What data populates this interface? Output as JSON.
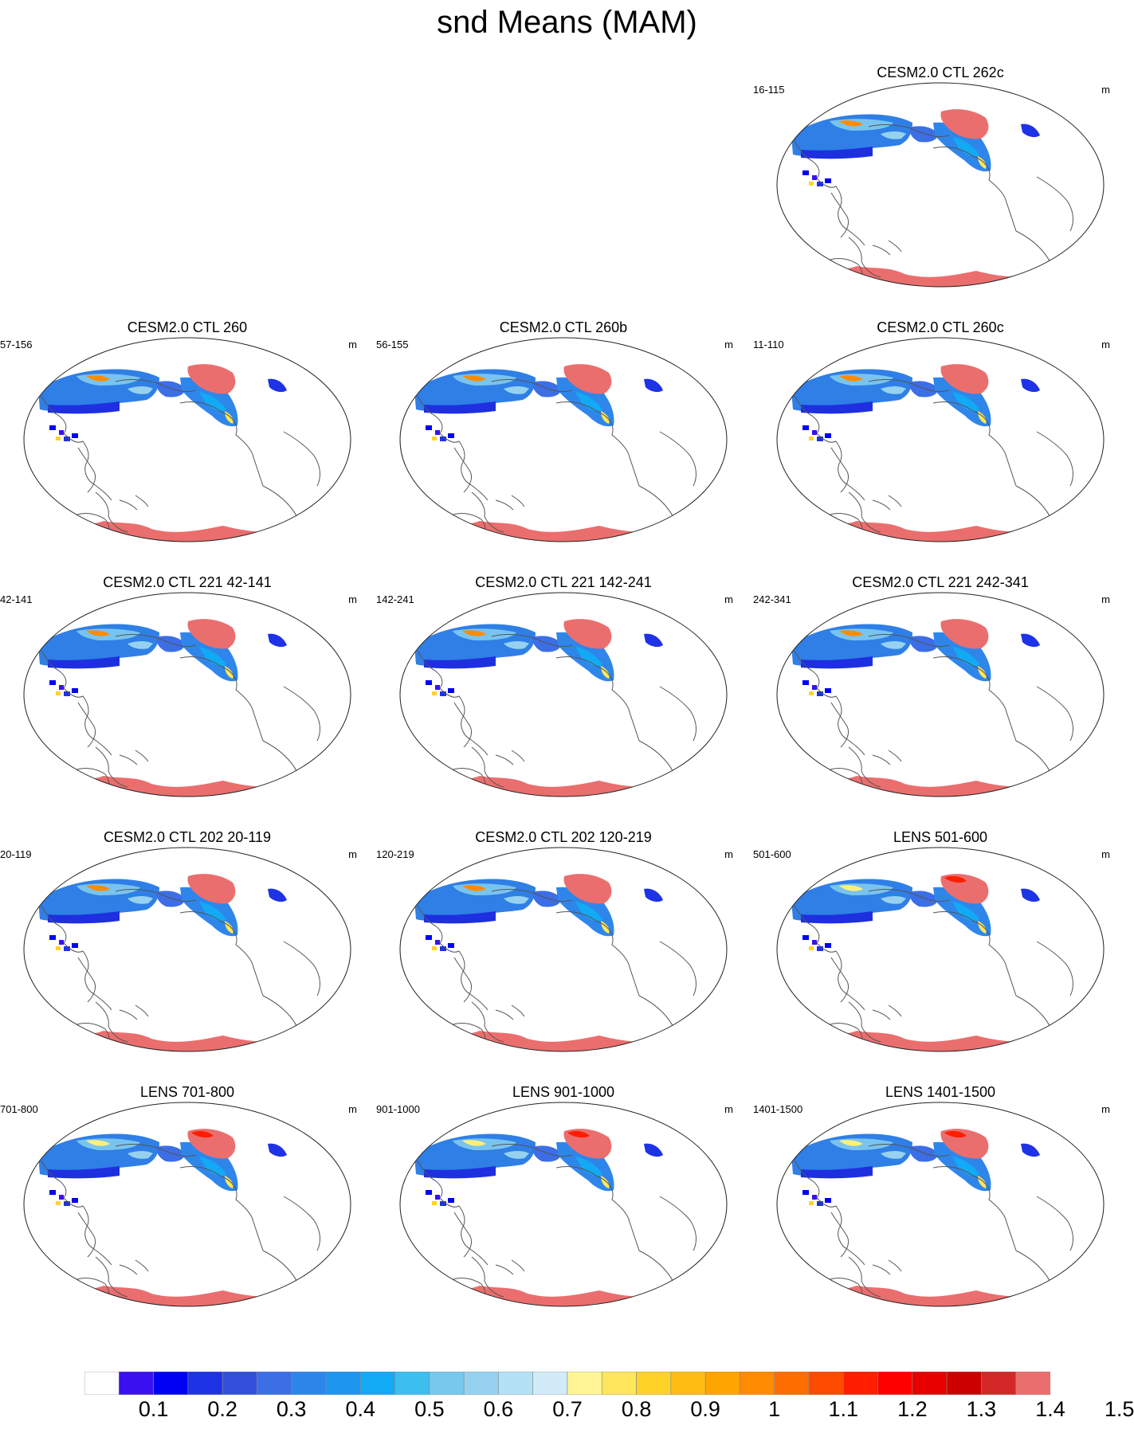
{
  "title": "snd Means (MAM)",
  "panels": [
    {
      "title": "CESM2.0 CTL 262c",
      "years": "16-115",
      "units": "m",
      "variant": "ctl"
    },
    {
      "title": "CESM2.0 CTL 260",
      "years": "57-156",
      "units": "m",
      "variant": "ctl"
    },
    {
      "title": "CESM2.0 CTL 260b",
      "years": "56-155",
      "units": "m",
      "variant": "ctl"
    },
    {
      "title": "CESM2.0 CTL 260c",
      "years": "11-110",
      "units": "m",
      "variant": "ctl"
    },
    {
      "title": "CESM2.0 CTL 221 42-141",
      "years": "42-141",
      "units": "m",
      "variant": "ctl"
    },
    {
      "title": "CESM2.0 CTL 221 142-241",
      "years": "142-241",
      "units": "m",
      "variant": "ctl"
    },
    {
      "title": "CESM2.0 CTL 221 242-341",
      "years": "242-341",
      "units": "m",
      "variant": "ctl"
    },
    {
      "title": "CESM2.0 CTL 202 20-119",
      "years": "20-119",
      "units": "m",
      "variant": "ctl"
    },
    {
      "title": "CESM2.0 CTL 202 120-219",
      "years": "120-219",
      "units": "m",
      "variant": "ctl"
    },
    {
      "title": "LENS 501-600",
      "years": "501-600",
      "units": "m",
      "variant": "lens"
    },
    {
      "title": "LENS 701-800",
      "years": "701-800",
      "units": "m",
      "variant": "lens"
    },
    {
      "title": "LENS 901-1000",
      "years": "901-1000",
      "units": "m",
      "variant": "lens"
    },
    {
      "title": "LENS 1401-1500",
      "years": "1401-1500",
      "units": "m",
      "variant": "lens"
    }
  ],
  "colorbar": {
    "labels": [
      "0.1",
      "0.2",
      "0.3",
      "0.4",
      "0.5",
      "0.6",
      "0.7",
      "0.8",
      "0.9",
      "1",
      "1.1",
      "1.2",
      "1.3",
      "1.4",
      "1.5"
    ],
    "colors": [
      "#ffffff",
      "#3a10f0",
      "#0000f5",
      "#1e32e6",
      "#3250dc",
      "#3c6ee6",
      "#2f86ea",
      "#1e96f0",
      "#12aaf5",
      "#3cbef0",
      "#78c8ee",
      "#96d2f0",
      "#b4e1f5",
      "#d2ebf8",
      "#fff596",
      "#ffe65a",
      "#ffd228",
      "#ffbe14",
      "#ffa500",
      "#ff8c00",
      "#ff6e00",
      "#ff4b00",
      "#ff1e00",
      "#ff0000",
      "#e60000",
      "#cd0000",
      "#d22828",
      "#eb6e6e"
    ]
  }
}
